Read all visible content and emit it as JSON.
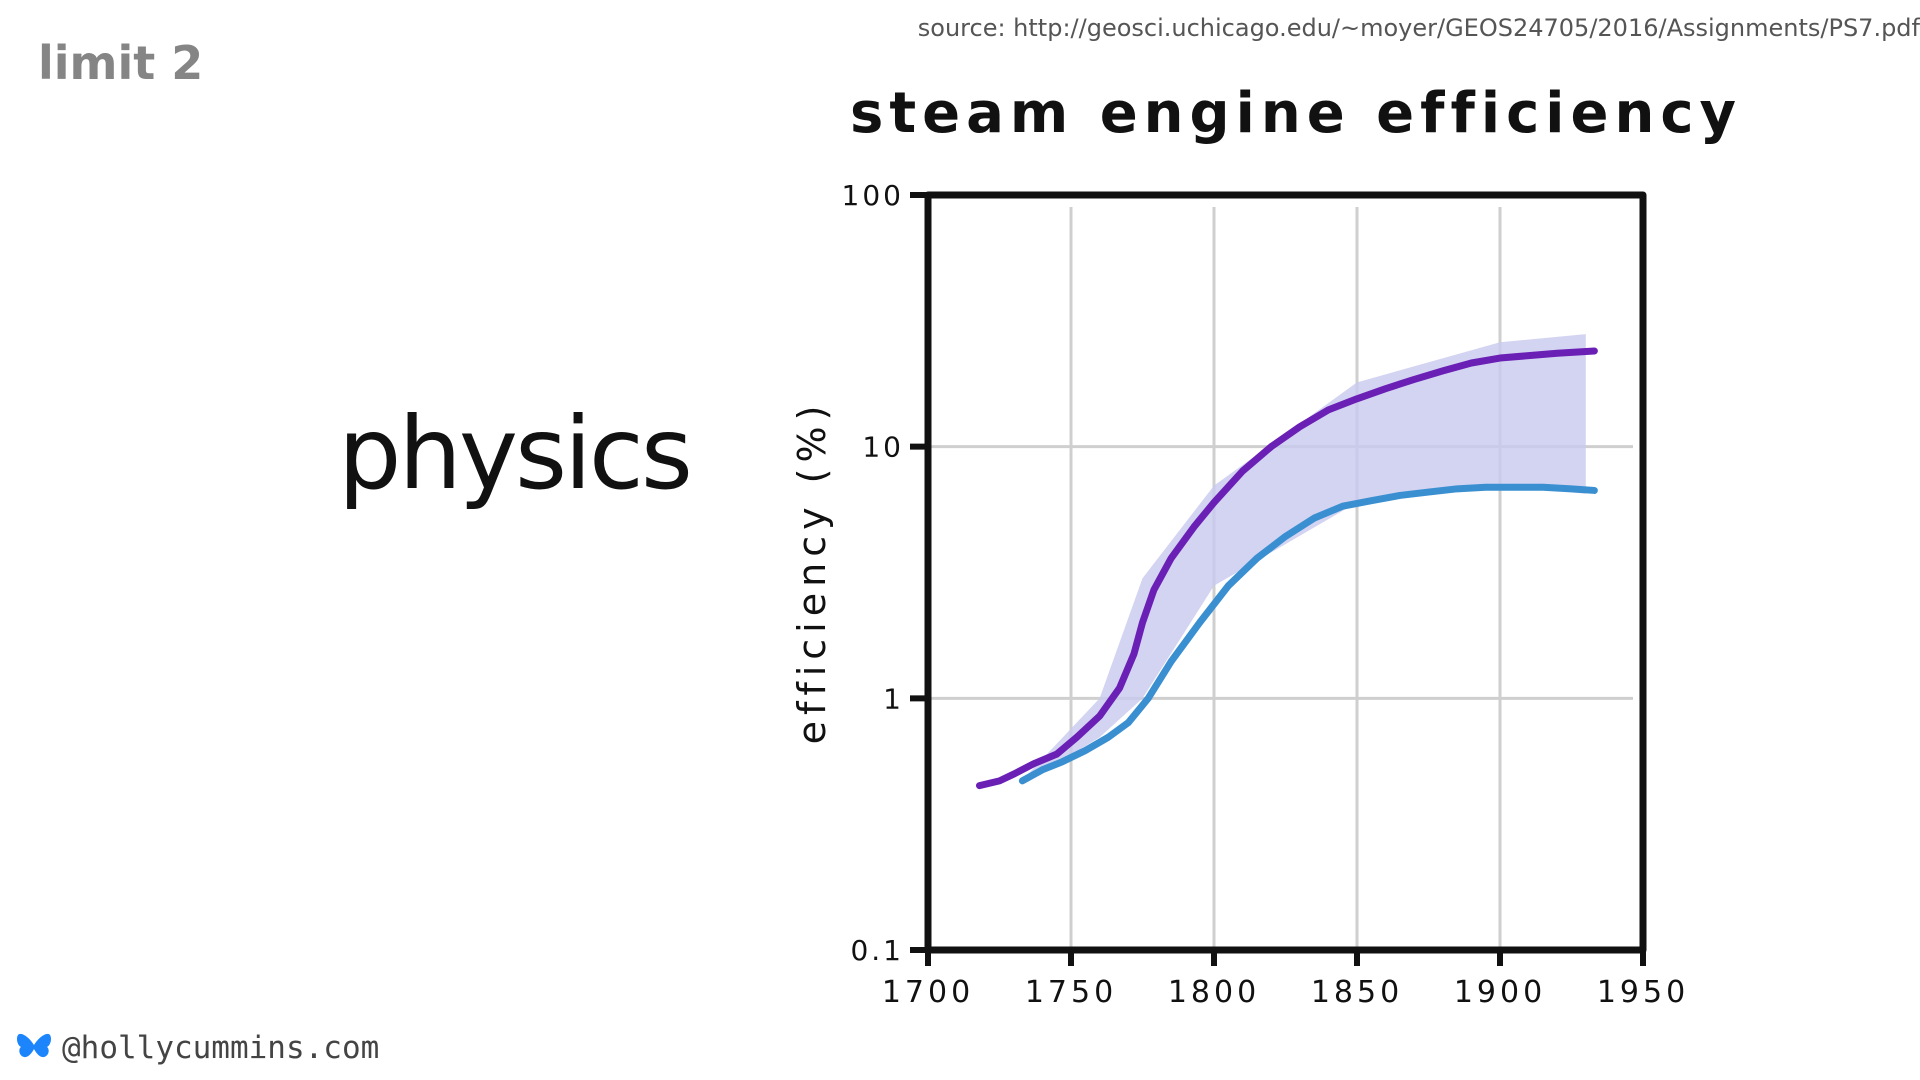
{
  "slide": {
    "label": "limit 2",
    "source": "source: http://geosci.uchicago.edu/~moyer/GEOS24705/2016/Assignments/PS7.pdf",
    "topic": "physics",
    "handle": "@hollycummins.com",
    "handle_icon": "butterfly-icon",
    "handle_icon_color": "#1d85fb"
  },
  "chart_data": {
    "type": "line",
    "title": "steam engine efficiency",
    "xlabel": "",
    "ylabel": "efficiency (%)",
    "xlim": [
      1700,
      1950
    ],
    "ylim": [
      0.1,
      100
    ],
    "yscale": "log",
    "grid": true,
    "legend": "none",
    "x_ticks": [
      1700,
      1750,
      1800,
      1850,
      1900,
      1950
    ],
    "x_tick_labels": [
      "1700",
      "1750",
      "1800",
      "1850",
      "1900",
      "1950"
    ],
    "y_ticks": [
      0.1,
      1,
      10,
      100
    ],
    "y_tick_labels": [
      "0.1",
      "1",
      "10",
      "100"
    ],
    "colors": {
      "upper": "#6a1fb5",
      "lower": "#3a8fd1",
      "band": "#c8c8ef"
    },
    "series": [
      {
        "key": "upper",
        "x": [
          1718,
          1725,
          1730,
          1737,
          1745,
          1752,
          1760,
          1767,
          1772,
          1775,
          1779,
          1785,
          1793,
          1800,
          1810,
          1820,
          1830,
          1840,
          1850,
          1860,
          1870,
          1880,
          1890,
          1900,
          1910,
          1920,
          1933
        ],
        "values": [
          0.45,
          0.47,
          0.5,
          0.55,
          0.6,
          0.7,
          0.85,
          1.1,
          1.5,
          2.0,
          2.7,
          3.6,
          4.8,
          6.0,
          8.0,
          10.0,
          12.0,
          14.0,
          15.5,
          17.0,
          18.5,
          20.0,
          21.5,
          22.5,
          23.0,
          23.5,
          24.0
        ]
      },
      {
        "key": "lower",
        "x": [
          1733,
          1740,
          1747,
          1755,
          1763,
          1770,
          1777,
          1785,
          1795,
          1805,
          1815,
          1825,
          1835,
          1845,
          1855,
          1865,
          1875,
          1885,
          1895,
          1905,
          1915,
          1925,
          1933
        ],
        "values": [
          0.47,
          0.52,
          0.56,
          0.62,
          0.7,
          0.8,
          1.0,
          1.4,
          2.0,
          2.8,
          3.6,
          4.4,
          5.2,
          5.8,
          6.1,
          6.4,
          6.6,
          6.8,
          6.9,
          6.9,
          6.9,
          6.8,
          6.7
        ]
      }
    ],
    "band": {
      "x": [
        1735,
        1760,
        1775,
        1800,
        1850,
        1900,
        1930
      ],
      "upper": [
        0.5,
        1.0,
        3.0,
        7.0,
        18.0,
        26.0,
        28.0
      ],
      "lower": [
        0.47,
        0.7,
        1.0,
        2.8,
        6.0,
        7.0,
        6.5
      ]
    }
  }
}
